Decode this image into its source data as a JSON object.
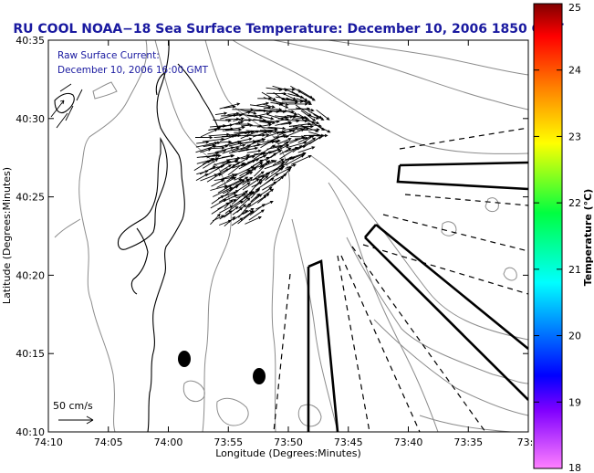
{
  "title": "RU COOL  NOAA−18  Sea Surface Temperature:  December 10, 2006 1850 GMT",
  "annotation": {
    "line1": "Raw Surface Current:",
    "line2": "December 10, 2006 16:00 GMT"
  },
  "scale_label": "50 cm/s",
  "colorbar": {
    "label": "Temperature (°C)",
    "ticks": [
      "18",
      "19",
      "20",
      "21",
      "22",
      "23",
      "24",
      "25"
    ],
    "stops": [
      "#ff80ff",
      "#8000ff",
      "#0000ff",
      "#00ffff",
      "#00ff40",
      "#ffff00",
      "#ff8000",
      "#ff0000",
      "#800000"
    ]
  },
  "chart_data": {
    "type": "map",
    "xlabel": "Longitude (Degrees:Minutes)",
    "ylabel": "Latitude (Degrees:Minutes)",
    "x_tick_labels": [
      "74:10",
      "74:05",
      "74:00",
      "73:55",
      "73:50",
      "73:45",
      "73:40",
      "73:35",
      "73:3"
    ],
    "y_tick_labels": [
      "40:10",
      "40:15",
      "40:20",
      "40:25",
      "40:30",
      "40:35"
    ],
    "x_range_minutes_west": [
      10,
      30
    ],
    "y_range_minutes_north": [
      10,
      35
    ],
    "markers": [
      {
        "lon_min_w": 2.4,
        "lat_min_n": 14.6
      },
      {
        "lon_min_w": 6.9,
        "lat_min_n": 13.5
      }
    ],
    "current_region": {
      "lon_min_w": [
        6,
        12
      ],
      "lat_min_n": [
        24,
        32
      ]
    }
  }
}
